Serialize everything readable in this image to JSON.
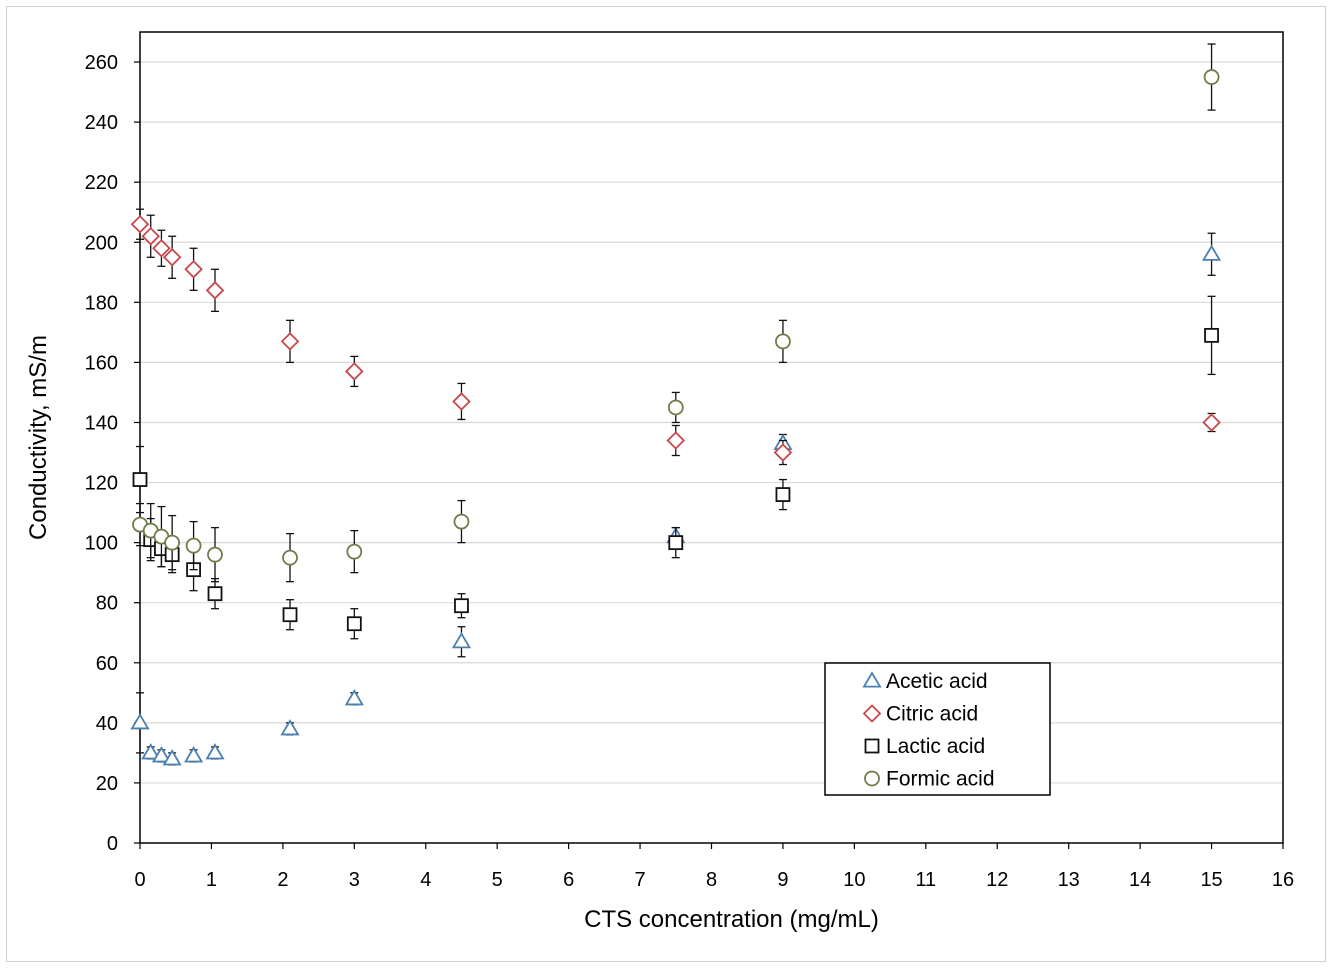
{
  "chart_data": {
    "type": "scatter",
    "title": "",
    "xlabel": "CTS concentration (mg/mL)",
    "ylabel": "Conductivity, mS/m",
    "xlim": [
      0,
      16
    ],
    "ylim": [
      0,
      270
    ],
    "xticks": [
      0,
      1,
      2,
      3,
      4,
      5,
      6,
      7,
      8,
      9,
      10,
      11,
      12,
      13,
      14,
      15,
      16
    ],
    "yticks": [
      0,
      20,
      40,
      60,
      80,
      100,
      120,
      140,
      160,
      180,
      200,
      220,
      240,
      260
    ],
    "grid": "horizontal",
    "legend_position": "lower-right",
    "series": [
      {
        "name": "Acetic acid",
        "marker": "triangle",
        "color": "#4a7fb0",
        "points": [
          {
            "x": 0,
            "y": 40,
            "err": 10
          },
          {
            "x": 0.15,
            "y": 30,
            "err": 2
          },
          {
            "x": 0.3,
            "y": 29,
            "err": 2
          },
          {
            "x": 0.45,
            "y": 28,
            "err": 2
          },
          {
            "x": 0.75,
            "y": 29,
            "err": 2
          },
          {
            "x": 1.05,
            "y": 30,
            "err": 2
          },
          {
            "x": 2.1,
            "y": 38,
            "err": 2
          },
          {
            "x": 3,
            "y": 48,
            "err": 2
          },
          {
            "x": 4.5,
            "y": 67,
            "err": 5
          },
          {
            "x": 7.5,
            "y": 102,
            "err": 3
          },
          {
            "x": 9,
            "y": 133,
            "err": 3
          },
          {
            "x": 15,
            "y": 196,
            "err": 7
          }
        ]
      },
      {
        "name": "Citric acid",
        "marker": "diamond",
        "color": "#c8474b",
        "points": [
          {
            "x": 0,
            "y": 206,
            "err": 5
          },
          {
            "x": 0.15,
            "y": 202,
            "err": 7
          },
          {
            "x": 0.3,
            "y": 198,
            "err": 6
          },
          {
            "x": 0.45,
            "y": 195,
            "err": 7
          },
          {
            "x": 0.75,
            "y": 191,
            "err": 7
          },
          {
            "x": 1.05,
            "y": 184,
            "err": 7
          },
          {
            "x": 2.1,
            "y": 167,
            "err": 7
          },
          {
            "x": 3,
            "y": 157,
            "err": 5
          },
          {
            "x": 4.5,
            "y": 147,
            "err": 6
          },
          {
            "x": 7.5,
            "y": 134,
            "err": 5
          },
          {
            "x": 9,
            "y": 130,
            "err": 4
          },
          {
            "x": 15,
            "y": 140,
            "err": 3
          }
        ]
      },
      {
        "name": "Lactic acid",
        "marker": "square",
        "color": "#111111",
        "points": [
          {
            "x": 0,
            "y": 121,
            "err": 11
          },
          {
            "x": 0.15,
            "y": 101,
            "err": 7
          },
          {
            "x": 0.3,
            "y": 98,
            "err": 6
          },
          {
            "x": 0.45,
            "y": 96,
            "err": 6
          },
          {
            "x": 0.75,
            "y": 91,
            "err": 7
          },
          {
            "x": 1.05,
            "y": 83,
            "err": 5
          },
          {
            "x": 2.1,
            "y": 76,
            "err": 5
          },
          {
            "x": 3,
            "y": 73,
            "err": 5
          },
          {
            "x": 4.5,
            "y": 79,
            "err": 4
          },
          {
            "x": 7.5,
            "y": 100,
            "err": 5
          },
          {
            "x": 9,
            "y": 116,
            "err": 5
          },
          {
            "x": 15,
            "y": 169,
            "err": 13
          }
        ]
      },
      {
        "name": "Formic acid",
        "marker": "circle",
        "color": "#6e7d4a",
        "points": [
          {
            "x": 0,
            "y": 106,
            "err": 7
          },
          {
            "x": 0.15,
            "y": 104,
            "err": 9
          },
          {
            "x": 0.3,
            "y": 102,
            "err": 10
          },
          {
            "x": 0.45,
            "y": 100,
            "err": 9
          },
          {
            "x": 0.75,
            "y": 99,
            "err": 8
          },
          {
            "x": 1.05,
            "y": 96,
            "err": 9
          },
          {
            "x": 2.1,
            "y": 95,
            "err": 8
          },
          {
            "x": 3,
            "y": 97,
            "err": 7
          },
          {
            "x": 4.5,
            "y": 107,
            "err": 7
          },
          {
            "x": 7.5,
            "y": 145,
            "err": 5
          },
          {
            "x": 9,
            "y": 167,
            "err": 7
          },
          {
            "x": 15,
            "y": 255,
            "err": 11
          }
        ]
      }
    ]
  }
}
